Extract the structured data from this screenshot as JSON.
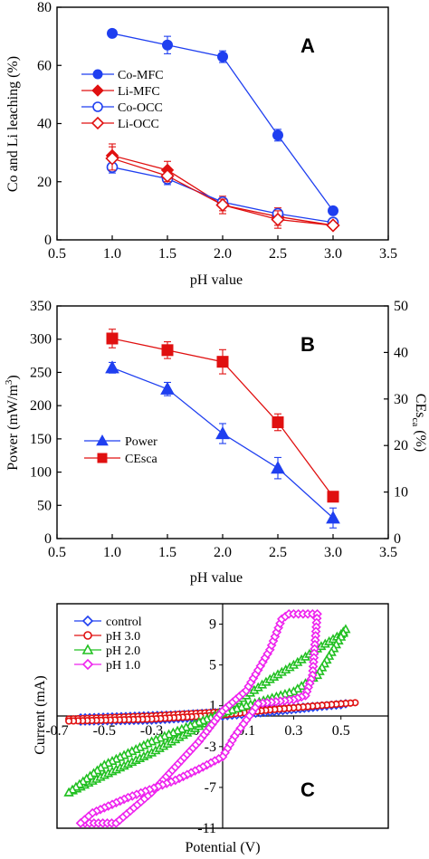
{
  "chart_data": [
    {
      "type": "line",
      "letter": "A",
      "xlabel": "pH value",
      "ylabel": "Co and Li leaching (%)",
      "xlim": [
        0.5,
        3.5
      ],
      "ylim": [
        0,
        80
      ],
      "xticks": [
        "0.5",
        "1.0",
        "1.5",
        "2.0",
        "2.5",
        "3.0",
        "3.5"
      ],
      "yticks": [
        "0",
        "20",
        "40",
        "60",
        "80"
      ],
      "legend_position": "center-left",
      "x": [
        1.0,
        1.5,
        2.0,
        2.5,
        3.0
      ],
      "series": [
        {
          "name": "Co-MFC",
          "color": "#1f3ff0",
          "marker": "filled-circle",
          "values": [
            71,
            67,
            63,
            36,
            10
          ],
          "err": [
            1,
            3,
            2,
            2,
            1
          ]
        },
        {
          "name": "Li-MFC",
          "color": "#e01010",
          "marker": "filled-diamond",
          "values": [
            29,
            24,
            12,
            8,
            5
          ],
          "err": [
            4,
            3,
            3,
            3,
            1
          ]
        },
        {
          "name": "Co-OCC",
          "color": "#1f3ff0",
          "marker": "open-circle",
          "values": [
            25,
            21,
            13,
            9,
            6
          ],
          "err": [
            2,
            2,
            1,
            1,
            1
          ]
        },
        {
          "name": "Li-OCC",
          "color": "#e01010",
          "marker": "open-diamond",
          "values": [
            28,
            22,
            12,
            7,
            5
          ],
          "err": [
            4,
            2,
            2,
            3,
            1
          ]
        }
      ]
    },
    {
      "type": "line",
      "letter": "B",
      "xlabel": "pH value",
      "ylabel_left": "Power (mW/m3)",
      "ylabel_left_main": "Power (mW/m",
      "ylabel_left_sup": "3",
      "ylabel_left_tail": ")",
      "ylabel_right": "CEsca (%)",
      "ylabel_right_main": "CEs",
      "ylabel_right_sub": "ca",
      "ylabel_right_tail": " (%)",
      "xlim": [
        0.5,
        3.5
      ],
      "ylim_left": [
        0,
        350
      ],
      "ylim_right": [
        0,
        50
      ],
      "xticks": [
        "0.5",
        "1.0",
        "1.5",
        "2.0",
        "2.5",
        "3.0",
        "3.5"
      ],
      "yticks_left": [
        "0",
        "50",
        "100",
        "150",
        "200",
        "250",
        "300",
        "350"
      ],
      "yticks_right": [
        "0",
        "10",
        "20",
        "30",
        "40",
        "50"
      ],
      "legend_position": "center-left",
      "x": [
        1.0,
        1.5,
        2.0,
        2.5,
        3.0
      ],
      "series": [
        {
          "name": "Power",
          "axis": "left",
          "color": "#1f3ff0",
          "marker": "filled-triangle",
          "values": [
            257,
            225,
            158,
            106,
            31
          ],
          "err": [
            8,
            10,
            15,
            16,
            15
          ]
        },
        {
          "name": "CEsca",
          "axis": "right",
          "color": "#e01010",
          "marker": "filled-square",
          "values": [
            43,
            40.5,
            38,
            25,
            9
          ],
          "err": [
            2,
            1.8,
            2.6,
            1.8,
            1
          ]
        }
      ]
    },
    {
      "type": "scatter",
      "letter": "C",
      "xlabel": "Potential (V)",
      "ylabel": "Current (mA)",
      "xlim": [
        -0.7,
        0.7
      ],
      "ylim": [
        -11,
        11
      ],
      "xticks": [
        "-0.7",
        "-0.5",
        "-0.3",
        "-0.1",
        "0.1",
        "0.3",
        "0.5"
      ],
      "yticks": [
        "9",
        "5",
        "1",
        "-3",
        "-7",
        "-11"
      ],
      "legend_position": "top-left",
      "series": [
        {
          "name": "control",
          "color": "#1f3ff0",
          "marker": "open-diamond",
          "loop_upper": [
            [
              -0.6,
              -0.2
            ],
            [
              -0.2,
              0.1
            ],
            [
              0.1,
              0.5
            ],
            [
              0.3,
              0.8
            ],
            [
              0.5,
              1.1
            ],
            [
              0.52,
              1.2
            ]
          ],
          "loop_lower": [
            [
              0.52,
              1.2
            ],
            [
              0.4,
              0.9
            ],
            [
              0.2,
              0.4
            ],
            [
              0.0,
              0.0
            ],
            [
              -0.3,
              -0.4
            ],
            [
              -0.6,
              -0.5
            ]
          ]
        },
        {
          "name": "pH 3.0",
          "color": "#e01010",
          "marker": "open-circle",
          "loop_upper": [
            [
              -0.65,
              -0.3
            ],
            [
              -0.3,
              0.0
            ],
            [
              0.0,
              0.4
            ],
            [
              0.3,
              0.8
            ],
            [
              0.5,
              1.2
            ],
            [
              0.56,
              1.3
            ]
          ],
          "loop_lower": [
            [
              0.56,
              1.3
            ],
            [
              0.4,
              1.0
            ],
            [
              0.2,
              0.6
            ],
            [
              0.0,
              0.1
            ],
            [
              -0.3,
              -0.3
            ],
            [
              -0.65,
              -0.5
            ]
          ]
        },
        {
          "name": "pH 2.0",
          "color": "#22c022",
          "marker": "open-triangle",
          "loop_upper": [
            [
              -0.65,
              -7.5
            ],
            [
              -0.5,
              -5.8
            ],
            [
              -0.3,
              -3.6
            ],
            [
              -0.1,
              -1.0
            ],
            [
              0.0,
              0.5
            ],
            [
              0.1,
              2.0
            ],
            [
              0.2,
              3.6
            ],
            [
              0.3,
              5.0
            ],
            [
              0.4,
              6.6
            ],
            [
              0.5,
              8.0
            ],
            [
              0.52,
              8.5
            ]
          ],
          "loop_lower": [
            [
              0.53,
              7.5
            ],
            [
              0.4,
              4.0
            ],
            [
              0.3,
              2.4
            ],
            [
              0.1,
              1.0
            ],
            [
              0.0,
              0.3
            ],
            [
              -0.1,
              -0.6
            ],
            [
              -0.3,
              -2.5
            ],
            [
              -0.5,
              -4.8
            ],
            [
              -0.65,
              -7.5
            ]
          ]
        },
        {
          "name": "pH 1.0",
          "color": "#ee22ee",
          "marker": "open-diamond",
          "loop_upper": [
            [
              -0.6,
              -10.5
            ],
            [
              -0.45,
              -10.5
            ],
            [
              -0.3,
              -7.5
            ],
            [
              -0.2,
              -5.0
            ],
            [
              -0.1,
              -2.5
            ],
            [
              0.0,
              0.5
            ],
            [
              0.1,
              2.5
            ],
            [
              0.2,
              6.5
            ],
            [
              0.25,
              9.5
            ],
            [
              0.28,
              10.0
            ],
            [
              0.4,
              10.0
            ]
          ],
          "loop_lower": [
            [
              0.4,
              10.0
            ],
            [
              0.38,
              4.0
            ],
            [
              0.35,
              2.0
            ],
            [
              0.3,
              1.6
            ],
            [
              0.15,
              1.2
            ],
            [
              0.1,
              -0.4
            ],
            [
              0.05,
              -2.0
            ],
            [
              0.0,
              -4.0
            ],
            [
              -0.05,
              -4.6
            ],
            [
              -0.1,
              -5.2
            ],
            [
              -0.2,
              -6.3
            ],
            [
              -0.4,
              -8.0
            ],
            [
              -0.55,
              -9.5
            ],
            [
              -0.6,
              -10.5
            ]
          ]
        }
      ]
    }
  ]
}
